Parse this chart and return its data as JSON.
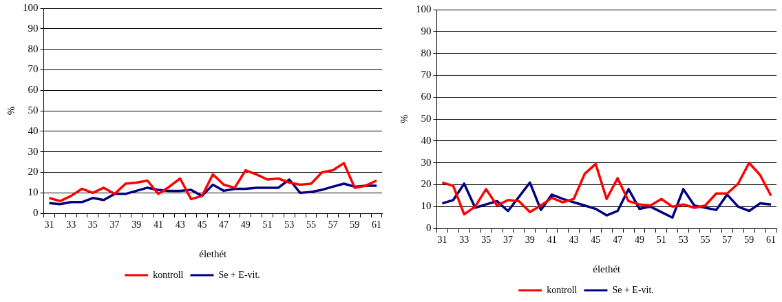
{
  "chart_data": [
    {
      "type": "line",
      "xlabel": "élethét",
      "ylabel": "%",
      "categories": [
        "31",
        null,
        "33",
        null,
        "35",
        null,
        "37",
        null,
        "39",
        null,
        "41",
        null,
        "43",
        null,
        "45",
        null,
        "47",
        null,
        "49",
        null,
        "51",
        null,
        "53",
        null,
        "55",
        null,
        "57",
        null,
        "59",
        null,
        "61"
      ],
      "series": [
        {
          "name": "kontroll",
          "color": "#ff0000",
          "values": [
            7.5,
            6,
            8.5,
            12,
            10,
            12.5,
            9.5,
            14.5,
            15,
            16,
            9.5,
            13,
            17,
            7,
            8.5,
            19,
            14,
            12.5,
            21,
            19,
            16.5,
            17,
            15,
            14,
            14.5,
            20,
            21,
            24.5,
            12.5,
            13.5,
            16
          ]
        },
        {
          "name": "Se + E-vit.",
          "color": "#000080",
          "values": [
            5,
            4.5,
            5.5,
            5.5,
            7.5,
            6.5,
            9.5,
            9.5,
            11,
            12.5,
            11.5,
            11,
            11,
            11.5,
            8.5,
            14,
            11,
            12,
            12,
            12.5,
            12.5,
            12.5,
            16.5,
            10,
            10.5,
            11.5,
            13,
            14.5,
            13,
            13.5,
            13.5
          ]
        }
      ],
      "ylim": [
        0,
        100
      ],
      "yticks": [
        0,
        10,
        20,
        30,
        40,
        50,
        60,
        70,
        80,
        90,
        100
      ],
      "grid": "y",
      "legend": "bottom",
      "marker": "none",
      "line_style": "solid"
    },
    {
      "type": "line",
      "xlabel": "élethét",
      "ylabel": "%",
      "categories": [
        "31",
        null,
        "33",
        null,
        "35",
        null,
        "37",
        null,
        "39",
        null,
        "41",
        null,
        "43",
        null,
        "45",
        null,
        "47",
        null,
        "49",
        null,
        "51",
        null,
        "53",
        null,
        "55",
        null,
        "57",
        null,
        "59",
        null,
        "61"
      ],
      "series": [
        {
          "name": "kontroll",
          "color": "#ff0000",
          "values": [
            21,
            19.5,
            6.5,
            10,
            18,
            10.5,
            13,
            12.5,
            7.5,
            10.5,
            14,
            12,
            13.5,
            25,
            29.5,
            13.5,
            23,
            12.5,
            11,
            10.5,
            13.5,
            10,
            11,
            9.5,
            10.5,
            16,
            16,
            20.5,
            30,
            24.5,
            15
          ]
        },
        {
          "name": "Se + E-vit.",
          "color": "#000080",
          "values": [
            11.5,
            13,
            20.5,
            9.5,
            11,
            12.5,
            8,
            14.5,
            21,
            8.5,
            15.5,
            13.5,
            12,
            10.5,
            9,
            6,
            8,
            18,
            9,
            10,
            7.5,
            5,
            18,
            10.5,
            9.5,
            8.5,
            15.5,
            10,
            8,
            11.5,
            11
          ]
        }
      ],
      "ylim": [
        0,
        100
      ],
      "yticks": [
        0,
        10,
        20,
        30,
        40,
        50,
        60,
        70,
        80,
        90,
        100
      ],
      "grid": "y",
      "legend": "bottom",
      "marker": "none",
      "line_style": "solid"
    }
  ]
}
